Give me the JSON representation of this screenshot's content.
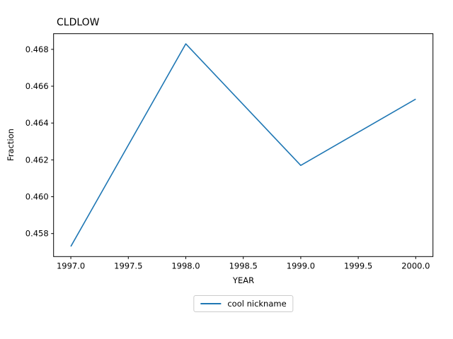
{
  "chart_data": {
    "type": "line",
    "title": "CLDLOW",
    "xlabel": "YEAR",
    "ylabel": "Fraction",
    "x": [
      1997,
      1998,
      1999,
      2000
    ],
    "series": [
      {
        "name": "cool nickname",
        "values": [
          0.4573,
          0.4683,
          0.4617,
          0.4653
        ],
        "color": "#1f77b4"
      }
    ],
    "xlim": [
      1996.85,
      2000.15
    ],
    "ylim": [
      0.45675,
      0.46885
    ],
    "xticks": [
      1997.0,
      1997.5,
      1998.0,
      1998.5,
      1999.0,
      1999.5,
      2000.0
    ],
    "xtick_labels": [
      "1997.0",
      "1997.5",
      "1998.0",
      "1998.5",
      "1999.0",
      "1999.5",
      "2000.0"
    ],
    "yticks": [
      0.458,
      0.46,
      0.462,
      0.464,
      0.466,
      0.468
    ],
    "ytick_labels": [
      "0.458",
      "0.460",
      "0.462",
      "0.464",
      "0.466",
      "0.468"
    ],
    "grid": false,
    "legend_position": "below-center",
    "axis_color": "#000000",
    "background_color": "#ffffff"
  }
}
